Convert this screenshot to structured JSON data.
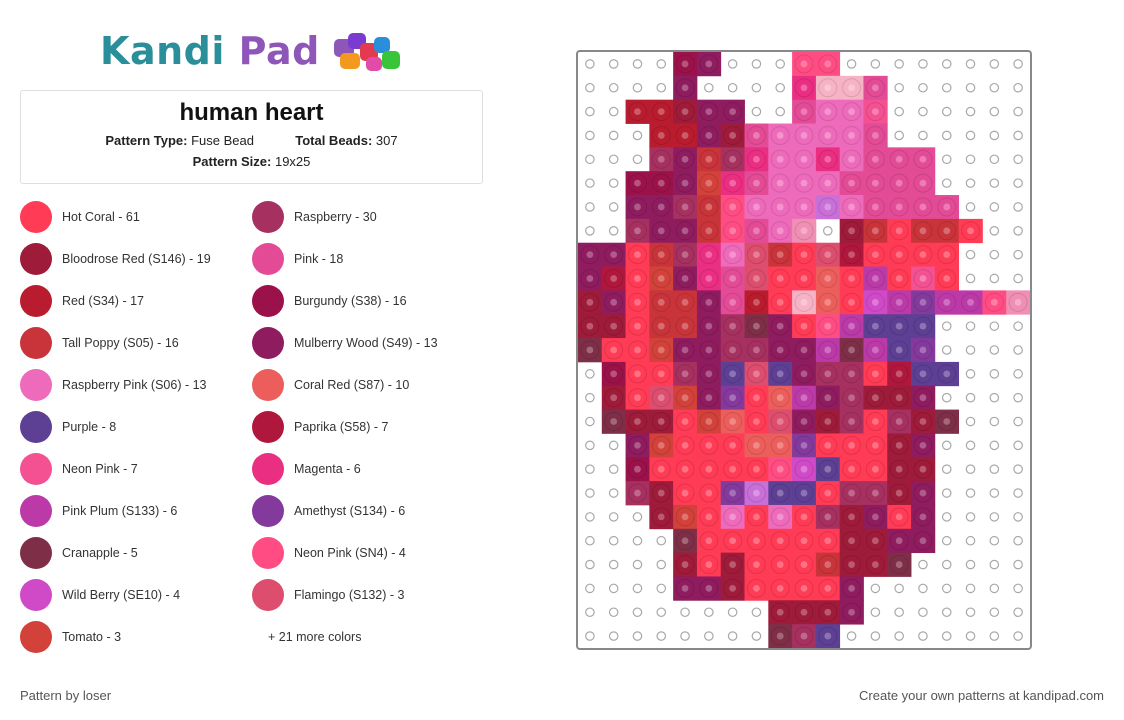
{
  "brand": {
    "logo_text_1": "Kandi",
    "logo_text_2": "Pad"
  },
  "pattern": {
    "title": "human heart",
    "type_label": "Pattern Type:",
    "type_value": "Fuse Bead",
    "beads_label": "Total Beads:",
    "beads_value": "307",
    "size_label": "Pattern Size:",
    "size_value": "19x25"
  },
  "colors": [
    {
      "label": "Hot Coral - 61",
      "hex": "#ff3b55"
    },
    {
      "label": "Raspberry - 30",
      "hex": "#a6305f"
    },
    {
      "label": "Bloodrose Red (S146) - 19",
      "hex": "#9e1b3a"
    },
    {
      "label": "Pink - 18",
      "hex": "#e34b97"
    },
    {
      "label": "Red (S34) - 17",
      "hex": "#b91c2e"
    },
    {
      "label": "Burgundy (S38) - 16",
      "hex": "#9b124a"
    },
    {
      "label": "Tall Poppy (S05) - 16",
      "hex": "#c8343a"
    },
    {
      "label": "Mulberry Wood (S49) - 13",
      "hex": "#8e1c5e"
    },
    {
      "label": "Raspberry Pink (S06) - 13",
      "hex": "#ee6bbb"
    },
    {
      "label": "Coral Red (S87) - 10",
      "hex": "#eb5e5c"
    },
    {
      "label": "Purple - 8",
      "hex": "#5d3f93"
    },
    {
      "label": "Paprika (S58) - 7",
      "hex": "#b0173c"
    },
    {
      "label": "Neon Pink - 7",
      "hex": "#f45192"
    },
    {
      "label": "Magenta - 6",
      "hex": "#ea2e82"
    },
    {
      "label": "Pink Plum (S133) - 6",
      "hex": "#bb3aa8"
    },
    {
      "label": "Amethyst (S134) - 6",
      "hex": "#84399c"
    },
    {
      "label": "Cranapple - 5",
      "hex": "#7e2f47"
    },
    {
      "label": "Neon Pink (SN4) - 4",
      "hex": "#ff4d84"
    },
    {
      "label": "Wild Berry (SE10) - 4",
      "hex": "#d04ac8"
    },
    {
      "label": "Flamingo (S132) - 3",
      "hex": "#dc4d6e"
    },
    {
      "label": "Tomato - 3",
      "hex": "#d2413a"
    }
  ],
  "more_colors": "+ 21 more colors",
  "footer": {
    "left": "Pattern by loser",
    "right": "Create your own patterns at kandipad.com"
  },
  "bead_grid": {
    "palette": {
      "H": "#ff3b55",
      "R": "#a6305f",
      "B": "#9e1b3a",
      "P": "#e34b97",
      "E": "#b91c2e",
      "U": "#9b124a",
      "T": "#c8343a",
      "M": "#8e1c5e",
      "K": "#ee6bbb",
      "C": "#eb5e5c",
      "V": "#5d3f93",
      "A": "#b0173c",
      "N": "#f45192",
      "G": "#ea2e82",
      "L": "#bb3aa8",
      "Y": "#84399c",
      "X": "#7e2f47",
      "S": "#ff4d84",
      "W": "#d04ac8",
      "F": "#dc4d6e",
      "O": "#d2413a",
      "Q": "#f6b3c6",
      "Z": "#c86fd8",
      "J": "#f08fb4"
    },
    "rows": [
      "....UM...SS........",
      "....M....GQQP......",
      "..EEBMM..PKKN......",
      "...EEMBPKKKKP......",
      "...RMTRGKKGKPPP....",
      "..UUMOGPKKKPPPP....",
      "..MMRTSKKKZKPPPP...",
      "..RMMTSPKJ.BTHTTH..",
      "MMHTRGKFTHFAHHHH...",
      "MAHOMGPFHHCHLHNH...",
      "BMHTTMPEHQCHWLYLLSJ",
      "BBHTTMRXMHSLVVV....",
      "XHHOMMRRMMLXLVY....",
      ".UHHRMVFVMRRHAVV...",
      ".BHFOMYHCLMRBBM....",
      ".XBBHOCHFMBRHRBX...",
      "..MOHHHCCYHHHBM....",
      "..UHHHHHSWVHHBB....",
      "..RBHHYZVVHRRBM....",
      "...BOHKHKHRBMHM....",
      "....XHHHHHHBBMM....",
      "....BHBHHHTBBX.....",
      "....MMBHHHHM.......",
      "........BBBM.......",
      "........XRV........"
    ]
  }
}
